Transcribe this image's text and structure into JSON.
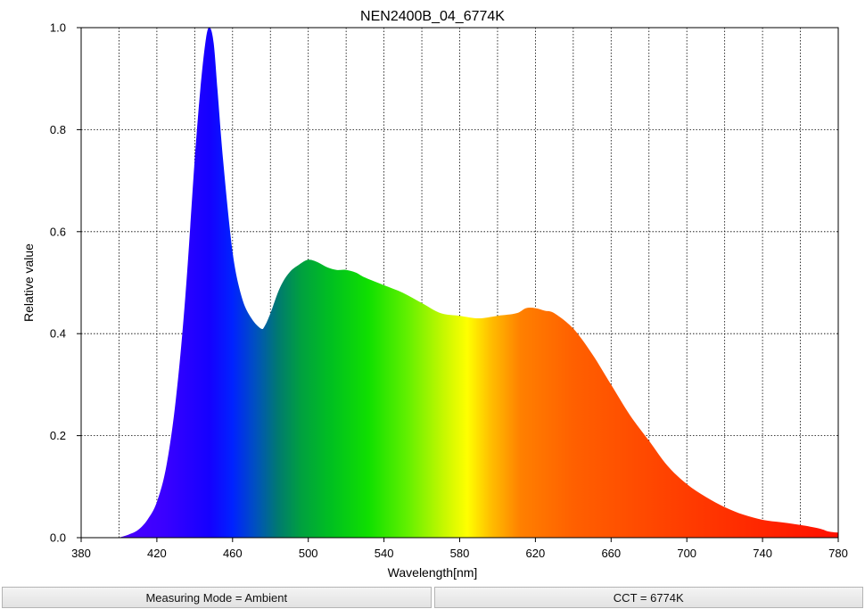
{
  "chart_data": {
    "type": "area",
    "title": "NEN2400B_04_6774K",
    "xlabel": "Wavelength[nm]",
    "ylabel": "Relative value",
    "xlim": [
      380,
      780
    ],
    "ylim": [
      0,
      1.0
    ],
    "xticks": [
      "380",
      "420",
      "460",
      "500",
      "540",
      "580",
      "620",
      "660",
      "700",
      "740",
      "780"
    ],
    "yticks": [
      "0.0",
      "0.2",
      "0.4",
      "0.6",
      "0.8",
      "1.0"
    ],
    "grid": true,
    "fill": "visible-spectrum gradient",
    "x": [
      400,
      405,
      410,
      415,
      420,
      425,
      430,
      435,
      440,
      443,
      446,
      448,
      450,
      452,
      455,
      460,
      465,
      470,
      475,
      477,
      480,
      485,
      490,
      495,
      500,
      505,
      510,
      515,
      520,
      525,
      530,
      540,
      550,
      560,
      570,
      580,
      590,
      600,
      610,
      615,
      620,
      625,
      630,
      640,
      650,
      660,
      670,
      680,
      690,
      700,
      710,
      720,
      730,
      740,
      750,
      760,
      770,
      775,
      780
    ],
    "y": [
      0.0,
      0.006,
      0.015,
      0.035,
      0.07,
      0.14,
      0.27,
      0.47,
      0.74,
      0.88,
      0.98,
      1.0,
      0.97,
      0.88,
      0.74,
      0.56,
      0.47,
      0.43,
      0.41,
      0.415,
      0.44,
      0.49,
      0.52,
      0.535,
      0.545,
      0.54,
      0.53,
      0.525,
      0.525,
      0.52,
      0.51,
      0.495,
      0.48,
      0.46,
      0.44,
      0.435,
      0.43,
      0.435,
      0.44,
      0.45,
      0.45,
      0.445,
      0.44,
      0.41,
      0.36,
      0.3,
      0.24,
      0.19,
      0.14,
      0.105,
      0.08,
      0.06,
      0.045,
      0.035,
      0.03,
      0.025,
      0.018,
      0.012,
      0.01
    ]
  },
  "status": {
    "mode": "Measuring Mode = Ambient",
    "cct": "CCT = 6774K"
  }
}
